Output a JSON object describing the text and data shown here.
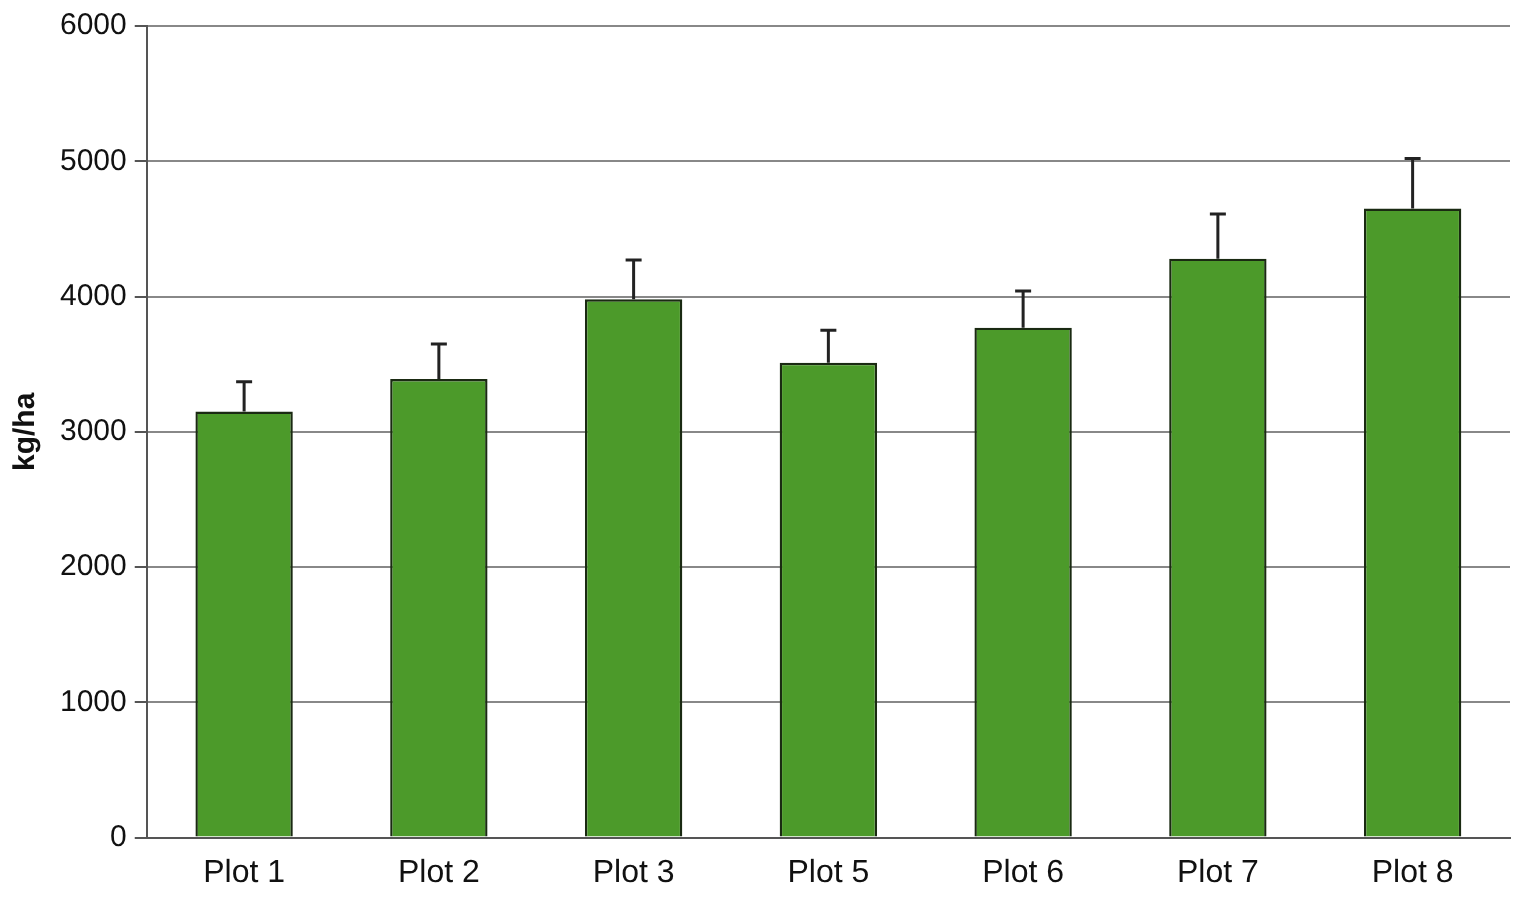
{
  "chart_data": {
    "type": "bar",
    "ylabel": "kg/ha",
    "categories": [
      "Plot 1",
      "Plot 2",
      "Plot 3",
      "Plot 5",
      "Plot 6",
      "Plot 7",
      "Plot 8"
    ],
    "values": [
      3150,
      3390,
      3980,
      3510,
      3770,
      4280,
      4650
    ],
    "errors": [
      [
        3150,
        3370
      ],
      [
        3390,
        3650
      ],
      [
        3980,
        4270
      ],
      [
        3510,
        3750
      ],
      [
        3770,
        4040
      ],
      [
        4280,
        4610
      ],
      [
        4650,
        5020
      ]
    ],
    "color": "#4c9a2a",
    "ylim": [
      0,
      6000
    ],
    "yticks": [
      0,
      1000,
      2000,
      3000,
      4000,
      5000,
      6000
    ],
    "grid": "y",
    "legend": false
  }
}
